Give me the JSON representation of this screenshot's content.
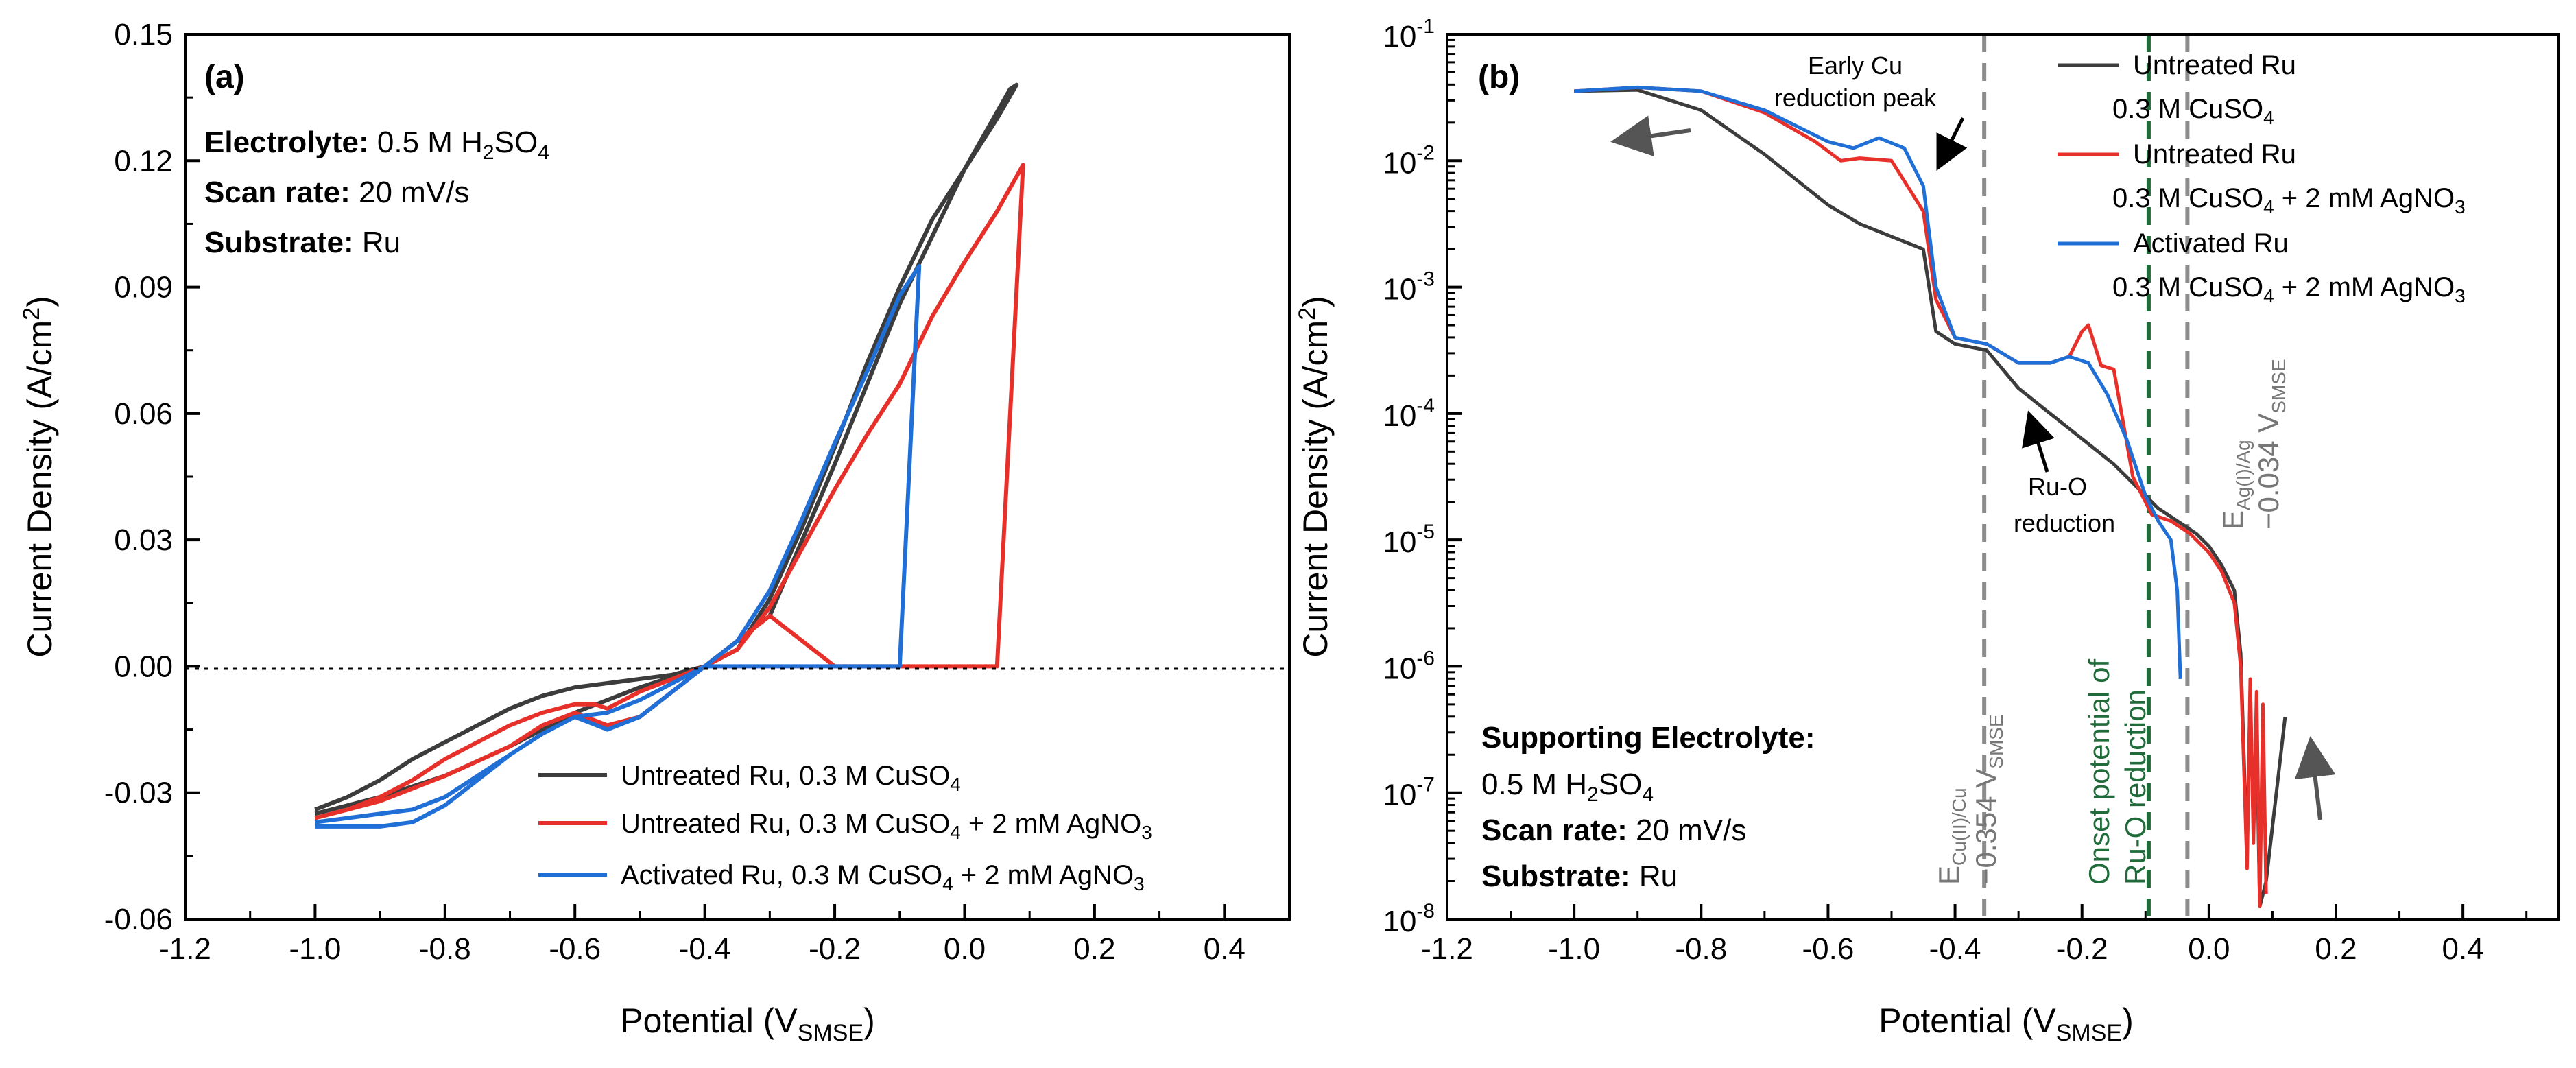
{
  "chart_data": [
    {
      "panel": "(a)",
      "type": "line",
      "xlabel": "Potential (V",
      "xlabel_sub": "SMSE",
      "xlabel_end": ")",
      "ylabel": "Current Density (A/cm",
      "ylabel_sup": "2",
      "ylabel_end": ")",
      "xlim": [
        -1.2,
        0.5
      ],
      "ylim": [
        -0.06,
        0.15
      ],
      "xticks": [
        "-1.2",
        "-1.0",
        "-0.8",
        "-0.6",
        "-0.4",
        "-0.2",
        "0.0",
        "0.2",
        "0.4"
      ],
      "xtick_values": [
        -1.2,
        -1.0,
        -0.8,
        -0.6,
        -0.4,
        -0.2,
        0.0,
        0.2,
        0.4
      ],
      "yticks": [
        "-0.06",
        "-0.03",
        "0.00",
        "0.03",
        "0.06",
        "0.09",
        "0.12",
        "0.15"
      ],
      "ytick_values": [
        -0.06,
        -0.03,
        0.0,
        0.03,
        0.06,
        0.09,
        0.12,
        0.15
      ],
      "info": {
        "electrolyte_label": "Electrolyte:",
        "electrolyte_value": "0.5 M H",
        "electrolyte_sub": "2",
        "electrolyte_end": "SO",
        "electrolyte_sub2": "4",
        "scan_label": "Scan rate:",
        "scan_value": "20 mV/s",
        "substrate_label": "Substrate:",
        "substrate_value": "Ru"
      },
      "legend": [
        {
          "pre": "Untreated Ru, 0.3 M CuSO",
          "sub": "4",
          "post": "",
          "sub2": "",
          "color": "#3c3c3c"
        },
        {
          "pre": "Untreated Ru, 0.3 M CuSO",
          "sub": "4",
          "post": " + 2 mM AgNO",
          "sub2": "3",
          "color": "#e8302a"
        },
        {
          "pre": "Activated Ru, 0.3 M CuSO",
          "sub": "4",
          "post": " + 2 mM AgNO",
          "sub2": "3",
          "color": "#1f6fd6"
        }
      ],
      "series": [
        {
          "name": "Untreated Ru, 0.3 M CuSO4",
          "color": "#3c3c3c",
          "x": [
            -1.0,
            -0.95,
            -0.9,
            -0.85,
            -0.8,
            -0.75,
            -0.7,
            -0.65,
            -0.6,
            -0.55,
            -0.5,
            -0.45,
            -0.4,
            -0.35,
            -0.3,
            -0.25,
            -0.2,
            -0.15,
            -0.1,
            -0.05,
            0.0,
            0.05,
            0.08,
            0.07,
            0.0,
            -0.1,
            -0.2,
            -0.3,
            -0.4,
            -0.5,
            -0.6,
            -0.7,
            -0.8,
            -0.9,
            -1.0
          ],
          "y": [
            -0.034,
            -0.031,
            -0.027,
            -0.022,
            -0.018,
            -0.014,
            -0.01,
            -0.007,
            -0.005,
            -0.004,
            -0.003,
            -0.002,
            0.0,
            0.004,
            0.016,
            0.033,
            0.052,
            0.072,
            0.09,
            0.106,
            0.118,
            0.13,
            0.138,
            0.137,
            0.118,
            0.086,
            0.048,
            0.012,
            0.0,
            -0.005,
            -0.011,
            -0.019,
            -0.026,
            -0.031,
            -0.035
          ]
        },
        {
          "name": "Untreated Ru, 0.3 M CuSO4 + 2 mM AgNO3",
          "color": "#e8302a",
          "x": [
            -1.0,
            -0.95,
            -0.9,
            -0.85,
            -0.8,
            -0.75,
            -0.7,
            -0.65,
            -0.6,
            -0.57,
            -0.55,
            -0.5,
            -0.45,
            -0.4,
            -0.35,
            -0.3,
            -0.25,
            -0.2,
            -0.15,
            -0.1,
            -0.05,
            0.0,
            0.05,
            0.09,
            0.05,
            0.0,
            -0.1,
            -0.2,
            -0.3,
            -0.4,
            -0.45,
            -0.5,
            -0.55,
            -0.6,
            -0.65,
            -0.7,
            -0.8,
            -0.9,
            -1.0
          ],
          "y": [
            -0.036,
            -0.034,
            -0.031,
            -0.027,
            -0.022,
            -0.018,
            -0.014,
            -0.011,
            -0.009,
            -0.009,
            -0.01,
            -0.006,
            -0.003,
            0.0,
            0.004,
            0.014,
            0.028,
            0.042,
            0.055,
            0.067,
            0.083,
            0.096,
            0.108,
            0.119,
            0.0,
            0.0,
            0.0,
            0.0,
            0.012,
            0.0,
            -0.006,
            -0.012,
            -0.014,
            -0.011,
            -0.014,
            -0.019,
            -0.026,
            -0.032,
            -0.036
          ]
        },
        {
          "name": "Activated Ru, 0.3 M CuSO4 + 2 mM AgNO3",
          "color": "#1f6fd6",
          "x": [
            -1.0,
            -0.95,
            -0.9,
            -0.85,
            -0.8,
            -0.75,
            -0.7,
            -0.65,
            -0.6,
            -0.55,
            -0.5,
            -0.45,
            -0.4,
            -0.35,
            -0.3,
            -0.25,
            -0.2,
            -0.15,
            -0.1,
            -0.07,
            -0.1,
            -0.2,
            -0.3,
            -0.4,
            -0.45,
            -0.5,
            -0.55,
            -0.6,
            -0.65,
            -0.7,
            -0.75,
            -0.8,
            -0.85,
            -0.9,
            -0.95,
            -1.0
          ],
          "y": [
            -0.038,
            -0.038,
            -0.038,
            -0.037,
            -0.033,
            -0.027,
            -0.021,
            -0.016,
            -0.012,
            -0.011,
            -0.008,
            -0.004,
            0.0,
            0.006,
            0.018,
            0.035,
            0.053,
            0.07,
            0.088,
            0.095,
            0.0,
            0.0,
            0.0,
            0.0,
            -0.006,
            -0.012,
            -0.015,
            -0.012,
            -0.016,
            -0.021,
            -0.026,
            -0.031,
            -0.034,
            -0.035,
            -0.036,
            -0.037
          ]
        }
      ]
    },
    {
      "panel": "(b)",
      "type": "line",
      "yscale": "log",
      "xlabel": "Potential (V",
      "xlabel_sub": "SMSE",
      "xlabel_end": ")",
      "ylabel": "Current Density (A/cm",
      "ylabel_sup": "2",
      "ylabel_end": ")",
      "xlim": [
        -1.2,
        0.55
      ],
      "ylim": [
        1e-08,
        0.1
      ],
      "xticks": [
        "-1.2",
        "-1.0",
        "-0.8",
        "-0.6",
        "-0.4",
        "-0.2",
        "0.0",
        "0.2",
        "0.4"
      ],
      "xtick_values": [
        -1.2,
        -1.0,
        -0.8,
        -0.6,
        -0.4,
        -0.2,
        0.0,
        0.2,
        0.4
      ],
      "yticks": [
        {
          "base": "10",
          "exp": "-8",
          "v": -8
        },
        {
          "base": "10",
          "exp": "-7",
          "v": -7
        },
        {
          "base": "10",
          "exp": "-6",
          "v": -6
        },
        {
          "base": "10",
          "exp": "-5",
          "v": -5
        },
        {
          "base": "10",
          "exp": "-4",
          "v": -4
        },
        {
          "base": "10",
          "exp": "-3",
          "v": -3
        },
        {
          "base": "10",
          "exp": "-2",
          "v": -2
        },
        {
          "base": "10",
          "exp": "-1",
          "v": -1
        }
      ],
      "vlines": [
        {
          "x": -0.354,
          "color": "#8c8c8c",
          "label_main": "E",
          "label_sub": "Cu(II)/Cu",
          "label_val": "−0.354 V",
          "label_valsub": "SMSE"
        },
        {
          "x": -0.095,
          "color": "#1f6b3a",
          "label_line1": "Onset potential of",
          "label_line2": "Ru-O reduction"
        },
        {
          "x": -0.034,
          "color": "#8c8c8c",
          "label_main": "E",
          "label_sub": "Ag(I)/Ag",
          "label_val": "−0.034 V",
          "label_valsub": "SMSE"
        }
      ],
      "annotations": {
        "early_cu_1": "Early Cu",
        "early_cu_2": "reduction peak",
        "ruo_1": "Ru-O",
        "ruo_2": "reduction"
      },
      "info": {
        "supporting_label": "Supporting Electrolyte:",
        "electrolyte_value": "0.5 M H",
        "electrolyte_sub": "2",
        "electrolyte_end": "SO",
        "electrolyte_sub2": "4",
        "scan_label": "Scan rate:",
        "scan_value": "20 mV/s",
        "substrate_label": "Substrate:",
        "substrate_value": "Ru"
      },
      "legend": [
        {
          "line1": "Untreated Ru",
          "line2_pre": "0.3 M CuSO",
          "line2_sub": "4",
          "line2_post": "",
          "line2_sub2": "",
          "color": "#3c3c3c"
        },
        {
          "line1": "Untreated Ru",
          "line2_pre": "0.3 M CuSO",
          "line2_sub": "4",
          "line2_post": " + 2 mM AgNO",
          "line2_sub2": "3",
          "color": "#e8302a"
        },
        {
          "line1": "Activated Ru",
          "line2_pre": "0.3 M CuSO",
          "line2_sub": "4",
          "line2_post": " + 2 mM AgNO",
          "line2_sub2": "3",
          "color": "#1f6fd6"
        }
      ],
      "series": [
        {
          "name": "Untreated Ru, 0.3 M CuSO4",
          "color": "#3c3c3c",
          "x": [
            0.12,
            0.09,
            0.08,
            0.075,
            0.07,
            0.065,
            0.06,
            0.05,
            0.04,
            0.02,
            0.0,
            -0.02,
            -0.05,
            -0.08,
            -0.1,
            -0.15,
            -0.2,
            -0.25,
            -0.3,
            -0.35,
            -0.4,
            -0.43,
            -0.45,
            -0.5,
            -0.55,
            -0.6,
            -0.65,
            -0.7,
            -0.8,
            -0.9,
            -1.0
          ],
          "y": [
            -6.4,
            -7.7,
            -7.9,
            -6.5,
            -7.3,
            -6.2,
            -7.5,
            -5.9,
            -5.4,
            -5.2,
            -5.05,
            -4.95,
            -4.85,
            -4.75,
            -4.65,
            -4.4,
            -4.2,
            -4.0,
            -3.8,
            -3.5,
            -3.45,
            -3.35,
            -2.7,
            -2.6,
            -2.5,
            -2.35,
            -2.15,
            -1.95,
            -1.6,
            -1.44,
            -1.45
          ]
        },
        {
          "name": "Untreated Ru, 0.3 M CuSO4 + 2 mM AgNO3",
          "color": "#e8302a",
          "x": [
            0.09,
            0.085,
            0.08,
            0.075,
            0.07,
            0.065,
            0.06,
            0.05,
            0.04,
            0.02,
            0.0,
            -0.03,
            -0.06,
            -0.09,
            -0.12,
            -0.15,
            -0.17,
            -0.19,
            -0.2,
            -0.22,
            -0.25,
            -0.3,
            -0.35,
            -0.4,
            -0.43,
            -0.45,
            -0.5,
            -0.55,
            -0.58,
            -0.62,
            -0.7,
            -0.8,
            -0.9,
            -1.0
          ],
          "y": [
            -7.8,
            -6.3,
            -7.9,
            -6.2,
            -7.4,
            -6.1,
            -7.6,
            -6.0,
            -5.5,
            -5.25,
            -5.1,
            -4.95,
            -4.85,
            -4.8,
            -4.5,
            -3.65,
            -3.62,
            -3.3,
            -3.35,
            -3.55,
            -3.6,
            -3.6,
            -3.45,
            -3.4,
            -3.1,
            -2.4,
            -2.0,
            -1.98,
            -2.0,
            -1.85,
            -1.62,
            -1.45,
            -1.42,
            -1.45
          ]
        },
        {
          "name": "Activated Ru, 0.3 M CuSO4 + 2 mM AgNO3",
          "color": "#1f6fd6",
          "x": [
            -0.045,
            -0.05,
            -0.06,
            -0.08,
            -0.1,
            -0.13,
            -0.16,
            -0.19,
            -0.22,
            -0.25,
            -0.3,
            -0.35,
            -0.4,
            -0.43,
            -0.45,
            -0.48,
            -0.52,
            -0.56,
            -0.6,
            -0.7,
            -0.8,
            -0.9,
            -1.0
          ],
          "y": [
            -6.1,
            -5.4,
            -5.0,
            -4.85,
            -4.65,
            -4.2,
            -3.85,
            -3.6,
            -3.55,
            -3.6,
            -3.6,
            -3.45,
            -3.4,
            -3.0,
            -2.2,
            -1.9,
            -1.82,
            -1.9,
            -1.85,
            -1.6,
            -1.45,
            -1.42,
            -1.45
          ]
        }
      ]
    }
  ]
}
